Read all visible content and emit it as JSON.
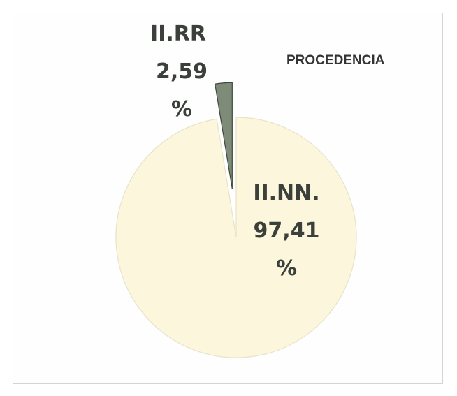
{
  "chart_data": {
    "type": "pie",
    "title": "PROCEDENCIA",
    "categories": [
      "II.RR",
      "II.NN."
    ],
    "values": [
      2.59,
      97.41
    ],
    "value_labels": [
      "2,59 %",
      "97,41 %"
    ],
    "colors": [
      "#7f8b79",
      "#fbf6dc"
    ]
  }
}
